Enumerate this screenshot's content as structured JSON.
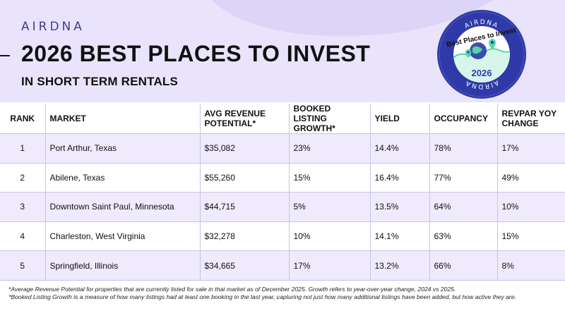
{
  "header": {
    "logo": "AIRDNA",
    "title": "2026 BEST PLACES TO INVEST",
    "subtitle": "IN SHORT TERM RENTALS"
  },
  "badge": {
    "brand_top": "AIRDNA",
    "brand_bottom": "AIRDNA",
    "brand_left": "AIRDNA",
    "brand_right": "AIRDNA",
    "line1": "Best Places to Invest",
    "year": "2026"
  },
  "table": {
    "headers": {
      "rank": "RANK",
      "market": "MARKET",
      "revenue_1": "AVG REVENUE",
      "revenue_2": "POTENTIAL*",
      "growth_1": "BOOKED LISTING",
      "growth_2": "GROWTH*",
      "yield": "YIELD",
      "occupancy": "OCCUPANCY",
      "revpar_1": "REVPAR YOY",
      "revpar_2": "CHANGE"
    },
    "rows": [
      {
        "rank": "1",
        "market": "Port Arthur, Texas",
        "revenue": "$35,082",
        "growth": "23%",
        "yield": "14.4%",
        "occupancy": "78%",
        "revpar": "17%"
      },
      {
        "rank": "2",
        "market": "Abilene, Texas",
        "revenue": "$55,260",
        "growth": "15%",
        "yield": "16.4%",
        "occupancy": "77%",
        "revpar": "49%"
      },
      {
        "rank": "3",
        "market": "Downtown Saint Paul, Minnesota",
        "revenue": "$44,715",
        "growth": "5%",
        "yield": "13.5%",
        "occupancy": "64%",
        "revpar": "10%"
      },
      {
        "rank": "4",
        "market": "Charleston, West Virginia",
        "revenue": "$32,278",
        "growth": "10%",
        "yield": "14.1%",
        "occupancy": "63%",
        "revpar": "15%"
      },
      {
        "rank": "5",
        "market": "Springfield, Illinois",
        "revenue": "$34,665",
        "growth": "17%",
        "yield": "13.2%",
        "occupancy": "66%",
        "revpar": "8%"
      }
    ]
  },
  "footnotes": {
    "note1": "*Average Revenue Potential for properties that are currently listed for sale in that market as of December 2025. Growth refers to year-over-year change, 2024 vs 2025.",
    "note2": "*Booked Listing Growth is a measure of how many listings had at least one booking in the last year, capturing not just how many additional listings have been added, but how active they are."
  },
  "colors": {
    "header_bg": "#e9e4fb",
    "header_wave": "#dcd5f7",
    "logo": "#3c3f8f",
    "badge_ring": "#2f3aa8",
    "badge_inner": "#ffffff",
    "badge_green": "#55d6a8",
    "row_shade": "#efeafc"
  }
}
